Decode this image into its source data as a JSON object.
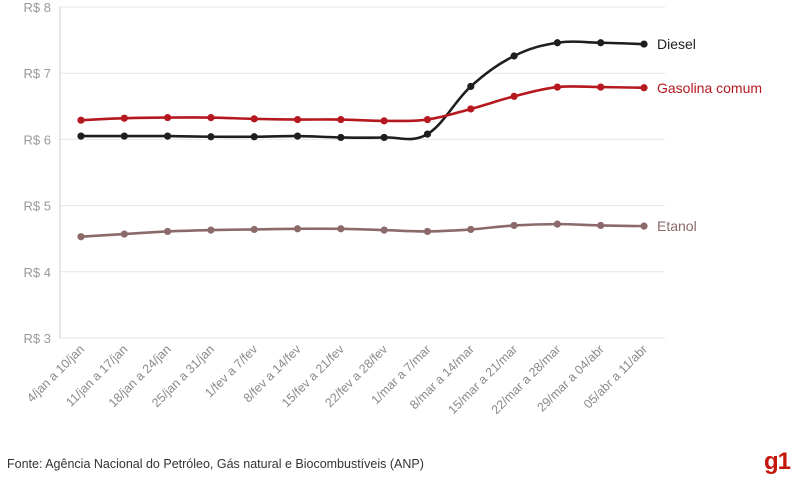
{
  "chart_data": {
    "type": "line",
    "title": "",
    "xlabel": "",
    "ylabel": "",
    "ylim": [
      3,
      8
    ],
    "yticks": [
      3,
      4,
      5,
      6,
      7,
      8
    ],
    "ytick_labels": [
      "R$ 3",
      "R$ 4",
      "R$ 5",
      "R$ 6",
      "R$ 7",
      "R$ 8"
    ],
    "grid": true,
    "categories": [
      "4/jan a 10/jan",
      "11/jan a 17/jan",
      "18/jan a 24/jan",
      "25/jan a 31/jan",
      "1/fev a 7/fev",
      "8/fev a 14/fev",
      "15/fev a 21/fev",
      "22/fev a 28/fev",
      "1/mar a 7/mar",
      "8/mar a 14/mar",
      "15/mar a 21/mar",
      "22/mar a 28/mar",
      "29/mar a 04/abr",
      "05/abr a 11/abr"
    ],
    "series": [
      {
        "name": "Diesel",
        "color": "#1e1e1e",
        "values": [
          6.05,
          6.05,
          6.05,
          6.04,
          6.04,
          6.05,
          6.03,
          6.03,
          6.08,
          6.8,
          7.26,
          7.46,
          7.46,
          7.44
        ]
      },
      {
        "name": "Gasolina comum",
        "color": "#b5181f",
        "values": [
          6.29,
          6.32,
          6.33,
          6.33,
          6.31,
          6.3,
          6.3,
          6.28,
          6.3,
          6.46,
          6.65,
          6.79,
          6.79,
          6.78
        ]
      },
      {
        "name": "Etanol",
        "color": "#8c6a6a",
        "values": [
          4.53,
          4.57,
          4.61,
          4.63,
          4.64,
          4.65,
          4.65,
          4.63,
          4.61,
          4.64,
          4.7,
          4.72,
          4.7,
          4.69
        ]
      }
    ]
  },
  "footer": {
    "source": "Fonte: Agência Nacional do Petróleo, Gás natural e Biocombustíveis (ANP)",
    "logo_text": "g1"
  }
}
